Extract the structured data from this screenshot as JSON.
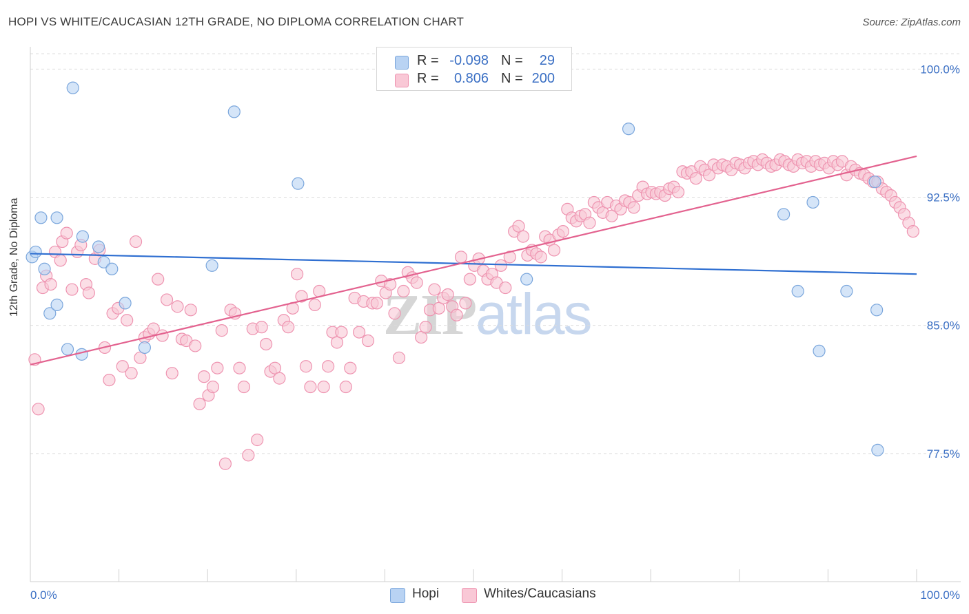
{
  "title": "HOPI VS WHITE/CAUCASIAN 12TH GRADE, NO DIPLOMA CORRELATION CHART",
  "source": "Source: ZipAtlas.com",
  "watermark": {
    "part1": "ZIP",
    "part2": "atlas"
  },
  "legend_top": {
    "rows": [
      {
        "r_label": "R =",
        "r_value": "-0.098",
        "n_label": "N =",
        "n_value": "29"
      },
      {
        "r_label": "R =",
        "r_value": "0.806",
        "n_label": "N =",
        "n_value": "200"
      }
    ]
  },
  "legend_bottom": [
    "Hopi",
    "Whites/Caucasians"
  ],
  "colors": {
    "hopi_fill": "#b9d3f3",
    "hopi_stroke": "#7aa6dc",
    "hopi_line": "#2f6fd1",
    "white_fill": "#f9c8d6",
    "white_stroke": "#ee93b0",
    "white_line": "#e3628f",
    "axis_tick_text": "#3a6fc4",
    "grid": "#dcdcdc"
  },
  "chart_data": {
    "type": "scatter",
    "title": "HOPI VS WHITE/CAUCASIAN 12TH GRADE, NO DIPLOMA CORRELATION CHART",
    "xlabel": "",
    "ylabel": "12th Grade, No Diploma",
    "xlim": [
      0,
      100
    ],
    "ylim": [
      70.0,
      100.9
    ],
    "x_tick_labels": [
      "0.0%",
      "100.0%"
    ],
    "y_ticks": [
      77.5,
      85.0,
      92.5,
      100.0
    ],
    "y_tick_labels": [
      "77.5%",
      "85.0%",
      "92.5%",
      "100.0%"
    ],
    "grid": "horizontal dashed",
    "legend_placement": "bottom",
    "series": [
      {
        "name": "Hopi",
        "trend": {
          "x": [
            0,
            100
          ],
          "y": [
            89.2,
            88.0
          ]
        },
        "points": [
          [
            0.2,
            89.0
          ],
          [
            0.6,
            89.3
          ],
          [
            1.2,
            91.3
          ],
          [
            1.6,
            88.3
          ],
          [
            2.2,
            85.7
          ],
          [
            3.0,
            86.2
          ],
          [
            3.0,
            91.3
          ],
          [
            4.2,
            83.6
          ],
          [
            4.8,
            98.9
          ],
          [
            5.8,
            83.3
          ],
          [
            5.9,
            90.2
          ],
          [
            7.7,
            89.6
          ],
          [
            8.3,
            88.7
          ],
          [
            9.2,
            88.3
          ],
          [
            10.7,
            86.3
          ],
          [
            12.9,
            83.7
          ],
          [
            20.5,
            88.5
          ],
          [
            23.0,
            97.5
          ],
          [
            30.2,
            93.3
          ],
          [
            56.0,
            87.7
          ],
          [
            67.5,
            96.5
          ],
          [
            85.0,
            91.5
          ],
          [
            86.6,
            87.0
          ],
          [
            88.3,
            92.2
          ],
          [
            89.0,
            83.5
          ],
          [
            92.1,
            87.0
          ],
          [
            95.3,
            93.4
          ],
          [
            95.5,
            85.9
          ],
          [
            95.6,
            77.7
          ]
        ]
      },
      {
        "name": "Whites/Caucasians",
        "trend": {
          "x": [
            0,
            100
          ],
          "y": [
            82.7,
            94.9
          ]
        },
        "points": [
          [
            0.5,
            83.0
          ],
          [
            0.9,
            80.1
          ],
          [
            1.4,
            87.2
          ],
          [
            1.8,
            87.9
          ],
          [
            2.3,
            87.4
          ],
          [
            2.8,
            89.3
          ],
          [
            3.4,
            88.8
          ],
          [
            3.6,
            89.9
          ],
          [
            4.1,
            90.4
          ],
          [
            4.7,
            87.1
          ],
          [
            5.3,
            89.3
          ],
          [
            5.7,
            89.7
          ],
          [
            6.3,
            87.4
          ],
          [
            6.6,
            86.9
          ],
          [
            7.3,
            88.9
          ],
          [
            7.8,
            89.4
          ],
          [
            8.4,
            83.7
          ],
          [
            8.9,
            81.8
          ],
          [
            9.3,
            85.7
          ],
          [
            9.9,
            86.0
          ],
          [
            10.4,
            82.6
          ],
          [
            10.9,
            85.3
          ],
          [
            11.4,
            82.2
          ],
          [
            11.9,
            89.9
          ],
          [
            12.4,
            83.1
          ],
          [
            12.9,
            84.3
          ],
          [
            13.4,
            84.5
          ],
          [
            13.9,
            84.8
          ],
          [
            14.4,
            87.7
          ],
          [
            14.9,
            84.4
          ],
          [
            15.4,
            86.5
          ],
          [
            16.0,
            82.2
          ],
          [
            16.6,
            86.1
          ],
          [
            17.1,
            84.2
          ],
          [
            17.6,
            84.1
          ],
          [
            18.1,
            85.9
          ],
          [
            18.6,
            83.8
          ],
          [
            19.1,
            80.4
          ],
          [
            19.6,
            82.0
          ],
          [
            20.1,
            80.9
          ],
          [
            20.6,
            81.4
          ],
          [
            21.1,
            82.5
          ],
          [
            21.6,
            84.7
          ],
          [
            22.0,
            76.9
          ],
          [
            22.6,
            85.9
          ],
          [
            23.1,
            85.7
          ],
          [
            23.6,
            82.5
          ],
          [
            24.1,
            81.4
          ],
          [
            24.6,
            77.4
          ],
          [
            25.1,
            84.8
          ],
          [
            25.6,
            78.3
          ],
          [
            26.1,
            84.9
          ],
          [
            26.6,
            83.9
          ],
          [
            27.1,
            82.3
          ],
          [
            27.6,
            82.5
          ],
          [
            28.1,
            81.9
          ],
          [
            28.6,
            85.3
          ],
          [
            29.1,
            84.9
          ],
          [
            29.6,
            86.0
          ],
          [
            30.1,
            88.0
          ],
          [
            30.6,
            86.7
          ],
          [
            31.1,
            82.6
          ],
          [
            31.6,
            81.4
          ],
          [
            32.1,
            86.2
          ],
          [
            32.6,
            87.0
          ],
          [
            33.1,
            81.4
          ],
          [
            33.6,
            82.6
          ],
          [
            34.1,
            84.6
          ],
          [
            34.6,
            84.0
          ],
          [
            35.1,
            84.6
          ],
          [
            35.6,
            81.4
          ],
          [
            36.1,
            82.5
          ],
          [
            36.6,
            86.6
          ],
          [
            37.1,
            84.6
          ],
          [
            37.6,
            86.4
          ],
          [
            38.1,
            84.1
          ],
          [
            38.6,
            86.3
          ],
          [
            39.1,
            86.3
          ],
          [
            39.6,
            87.6
          ],
          [
            40.1,
            86.9
          ],
          [
            40.6,
            87.4
          ],
          [
            41.1,
            85.7
          ],
          [
            41.6,
            83.1
          ],
          [
            42.1,
            87.0
          ],
          [
            42.6,
            88.1
          ],
          [
            43.1,
            87.8
          ],
          [
            43.6,
            87.5
          ],
          [
            44.1,
            84.3
          ],
          [
            44.6,
            84.9
          ],
          [
            45.1,
            85.9
          ],
          [
            45.6,
            87.1
          ],
          [
            46.1,
            86.0
          ],
          [
            46.6,
            86.6
          ],
          [
            47.1,
            86.8
          ],
          [
            47.6,
            86.1
          ],
          [
            48.1,
            85.6
          ],
          [
            48.6,
            89.0
          ],
          [
            49.1,
            86.3
          ],
          [
            49.6,
            87.7
          ],
          [
            50.1,
            88.5
          ],
          [
            50.6,
            88.9
          ],
          [
            51.1,
            88.2
          ],
          [
            51.6,
            87.7
          ],
          [
            52.1,
            88.0
          ],
          [
            52.6,
            87.5
          ],
          [
            53.1,
            88.5
          ],
          [
            53.6,
            87.2
          ],
          [
            54.1,
            89.0
          ],
          [
            54.6,
            90.5
          ],
          [
            55.1,
            90.8
          ],
          [
            55.6,
            90.2
          ],
          [
            56.1,
            89.1
          ],
          [
            56.6,
            89.4
          ],
          [
            57.1,
            89.2
          ],
          [
            57.6,
            89.0
          ],
          [
            58.1,
            90.2
          ],
          [
            58.6,
            90.0
          ],
          [
            59.1,
            89.4
          ],
          [
            59.6,
            90.3
          ],
          [
            60.1,
            90.5
          ],
          [
            60.6,
            91.8
          ],
          [
            61.1,
            91.3
          ],
          [
            61.6,
            91.1
          ],
          [
            62.1,
            91.4
          ],
          [
            62.6,
            91.5
          ],
          [
            63.1,
            91.0
          ],
          [
            63.6,
            92.2
          ],
          [
            64.1,
            91.9
          ],
          [
            64.6,
            91.6
          ],
          [
            65.1,
            92.2
          ],
          [
            65.6,
            91.4
          ],
          [
            66.1,
            92.0
          ],
          [
            66.6,
            91.8
          ],
          [
            67.1,
            92.3
          ],
          [
            67.6,
            92.2
          ],
          [
            68.1,
            91.9
          ],
          [
            68.6,
            92.6
          ],
          [
            69.1,
            93.1
          ],
          [
            69.6,
            92.7
          ],
          [
            70.1,
            92.8
          ],
          [
            70.6,
            92.7
          ],
          [
            71.1,
            92.8
          ],
          [
            71.6,
            92.6
          ],
          [
            72.1,
            93.0
          ],
          [
            72.6,
            93.1
          ],
          [
            73.1,
            92.8
          ],
          [
            73.6,
            94.0
          ],
          [
            74.1,
            93.9
          ],
          [
            74.6,
            94.0
          ],
          [
            75.1,
            93.6
          ],
          [
            75.6,
            94.3
          ],
          [
            76.1,
            94.1
          ],
          [
            76.6,
            93.8
          ],
          [
            77.1,
            94.4
          ],
          [
            77.6,
            94.2
          ],
          [
            78.1,
            94.4
          ],
          [
            78.6,
            94.3
          ],
          [
            79.1,
            94.1
          ],
          [
            79.6,
            94.5
          ],
          [
            80.1,
            94.4
          ],
          [
            80.6,
            94.2
          ],
          [
            81.1,
            94.5
          ],
          [
            81.6,
            94.6
          ],
          [
            82.1,
            94.4
          ],
          [
            82.6,
            94.7
          ],
          [
            83.1,
            94.5
          ],
          [
            83.6,
            94.3
          ],
          [
            84.1,
            94.4
          ],
          [
            84.6,
            94.7
          ],
          [
            85.1,
            94.6
          ],
          [
            85.6,
            94.4
          ],
          [
            86.1,
            94.3
          ],
          [
            86.6,
            94.7
          ],
          [
            87.1,
            94.5
          ],
          [
            87.6,
            94.6
          ],
          [
            88.1,
            94.3
          ],
          [
            88.6,
            94.6
          ],
          [
            89.1,
            94.4
          ],
          [
            89.6,
            94.5
          ],
          [
            90.1,
            94.2
          ],
          [
            90.6,
            94.6
          ],
          [
            91.1,
            94.4
          ],
          [
            91.6,
            94.6
          ],
          [
            92.1,
            93.8
          ],
          [
            92.6,
            94.3
          ],
          [
            93.1,
            94.1
          ],
          [
            93.6,
            93.9
          ],
          [
            94.1,
            93.8
          ],
          [
            94.6,
            93.6
          ],
          [
            95.1,
            93.4
          ],
          [
            95.6,
            93.4
          ],
          [
            96.1,
            93.0
          ],
          [
            96.6,
            92.8
          ],
          [
            97.1,
            92.6
          ],
          [
            97.6,
            92.2
          ],
          [
            98.1,
            91.9
          ],
          [
            98.6,
            91.5
          ],
          [
            99.1,
            91.0
          ],
          [
            99.6,
            90.5
          ]
        ]
      }
    ]
  }
}
